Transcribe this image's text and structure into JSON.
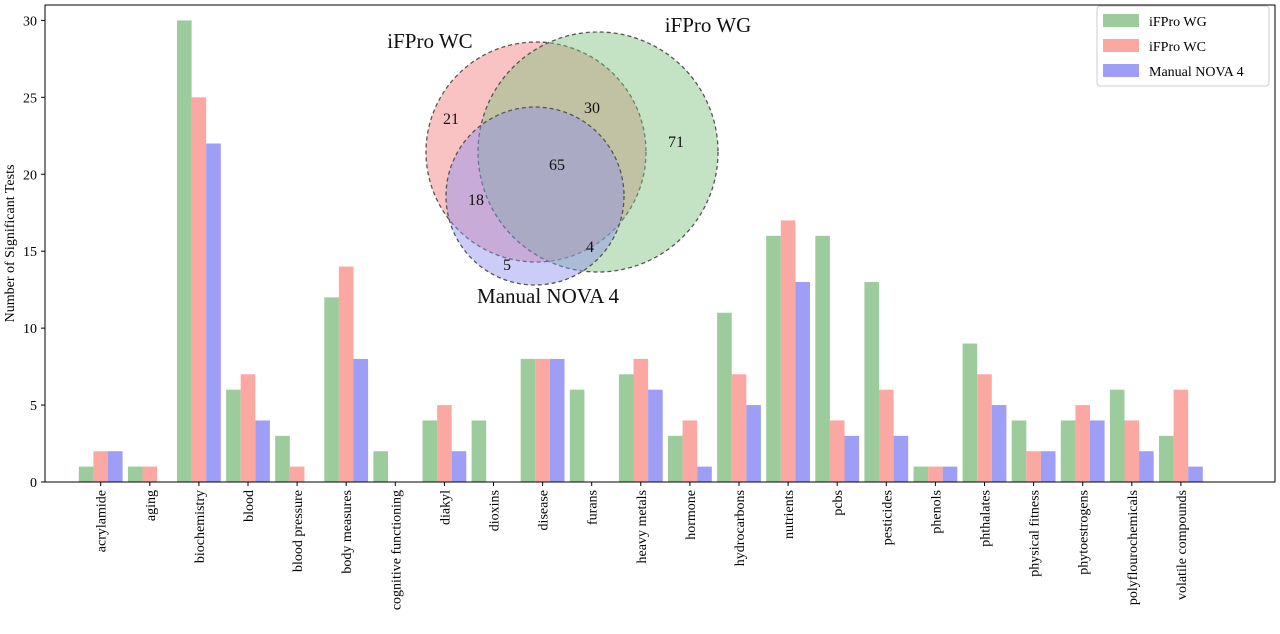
{
  "chart_data": [
    {
      "type": "bar",
      "ylabel": "Number of Significant Tests",
      "xlabel": "",
      "ylim": [
        0,
        31
      ],
      "yticks": [
        0,
        5,
        10,
        15,
        20,
        25,
        30
      ],
      "legend_position": "top-right",
      "categories": [
        "acrylamide",
        "aging",
        "biochemistry",
        "blood",
        "blood pressure",
        "body measures",
        "cognitive functioning",
        "diakyl",
        "dioxins",
        "disease",
        "furans",
        "heavy metals",
        "hormone",
        "hydrocarbons",
        "nutrients",
        "pcbs",
        "pesticides",
        "phenols",
        "phthalates",
        "physical fitness",
        "phytoestrogens",
        "polyflourochemicals",
        "volatile compounds"
      ],
      "series": [
        {
          "name": "iFPro WG",
          "color": "#9ccc9c",
          "values": [
            1,
            1,
            30,
            6,
            3,
            12,
            2,
            4,
            4,
            8,
            6,
            7,
            3,
            11,
            16,
            16,
            13,
            1,
            9,
            4,
            4,
            6,
            3
          ]
        },
        {
          "name": "iFPro WC",
          "color": "#fba8a3",
          "values": [
            2,
            1,
            25,
            7,
            1,
            14,
            0,
            5,
            0,
            8,
            0,
            8,
            4,
            7,
            17,
            4,
            6,
            1,
            7,
            2,
            5,
            4,
            6
          ]
        },
        {
          "name": "Manual NOVA 4",
          "color": "#9f9ef6",
          "values": [
            2,
            0,
            22,
            4,
            0,
            8,
            0,
            2,
            0,
            8,
            0,
            6,
            1,
            5,
            13,
            3,
            3,
            1,
            5,
            2,
            4,
            2,
            1
          ]
        }
      ]
    },
    {
      "type": "venn",
      "sets": [
        {
          "name": "iFPro WC",
          "color": "#f47b7b"
        },
        {
          "name": "iFPro WG",
          "color": "#7dbf7d"
        },
        {
          "name": "Manual NOVA 4",
          "color": "#8f8ef0"
        }
      ],
      "regions": [
        {
          "sets": [
            "iFPro WC"
          ],
          "value": 21
        },
        {
          "sets": [
            "iFPro WG"
          ],
          "value": 71
        },
        {
          "sets": [
            "iFPro WC",
            "iFPro WG"
          ],
          "value": 30
        },
        {
          "sets": [
            "iFPro WC",
            "iFPro WG",
            "Manual NOVA 4"
          ],
          "value": 65
        },
        {
          "sets": [
            "iFPro WC",
            "Manual NOVA 4"
          ],
          "value": 18
        },
        {
          "sets": [
            "iFPro WG",
            "Manual NOVA 4"
          ],
          "value": 4
        },
        {
          "sets": [
            "Manual NOVA 4"
          ],
          "value": 5
        }
      ]
    }
  ]
}
